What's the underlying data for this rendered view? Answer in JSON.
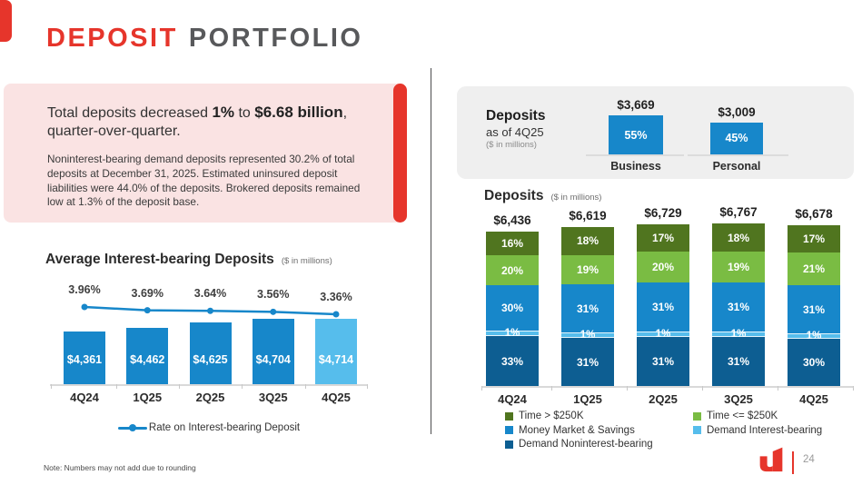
{
  "header": {
    "title_accent": "DEPOSIT",
    "title_rest": "PORTFOLIO"
  },
  "callout": {
    "line1_t1": "Total deposits decreased ",
    "line1_b1": "1%",
    "line1_t2": " to ",
    "line1_b2": "$6.68 billion",
    "line1_t3": ",",
    "line2": "quarter-over-quarter.",
    "body": "Noninterest-bearing demand deposits represented 30.2% of total deposits at December 31, 2025. Estimated uninsured deposit liabilities were 44.0% of the deposits. Brokered deposits remained low at 1.3% of the deposit base."
  },
  "footer": {
    "note": "Note: Numbers may not add due to rounding",
    "page_number": "24"
  },
  "colors": {
    "red": "#e6352b",
    "pink": "#fae3e3",
    "blue": "#1787ca",
    "light_blue": "#56bdec",
    "dark_blue": "#0d5e92",
    "dark_green": "#50751f",
    "light_green": "#7abc43",
    "panel_gray": "#efefef",
    "title_gray": "#58595b"
  },
  "chart_data": [
    {
      "id": "avg-interest-bearing-deposits",
      "type": "bar",
      "title": "Average Interest-bearing Deposits",
      "unit_label": "($ in millions)",
      "categories": [
        "4Q24",
        "1Q25",
        "2Q25",
        "3Q25",
        "4Q25"
      ],
      "series": [
        {
          "name": "Average Interest-bearing Deposits",
          "type": "bar",
          "values": [
            4361,
            4462,
            4625,
            4704,
            4714
          ],
          "labels": [
            "$4,361",
            "$4,462",
            "$4,625",
            "$4,704",
            "$4,714"
          ],
          "colors": [
            "#1787ca",
            "#1787ca",
            "#1787ca",
            "#1787ca",
            "#56bdec"
          ]
        },
        {
          "name": "Rate on Interest-bearing Deposit",
          "type": "line",
          "values": [
            3.96,
            3.69,
            3.64,
            3.56,
            3.36
          ],
          "labels": [
            "3.96%",
            "3.69%",
            "3.64%",
            "3.56%",
            "3.36%"
          ],
          "color": "#1787ca"
        }
      ],
      "legend_position": "bottom"
    },
    {
      "id": "deposits-as-of-4q25",
      "type": "bar",
      "title": "Deposits",
      "subtitle": "as of 4Q25",
      "unit_label": "($ in millions)",
      "categories": [
        "Business",
        "Personal"
      ],
      "values": [
        3669,
        3009
      ],
      "value_labels": [
        "$3,669",
        "$3,009"
      ],
      "pct_labels": [
        "55%",
        "45%"
      ],
      "bar_color": "#1787ca"
    },
    {
      "id": "deposit-mix",
      "type": "stacked-bar",
      "title": "Deposits",
      "unit_label": "($ in millions)",
      "categories": [
        "4Q24",
        "1Q25",
        "2Q25",
        "3Q25",
        "4Q25"
      ],
      "totals": [
        6436,
        6619,
        6729,
        6767,
        6678
      ],
      "total_labels": [
        "$6,436",
        "$6,619",
        "$6,729",
        "$6,767",
        "$6,678"
      ],
      "series": [
        {
          "name": "Demand Noninterest-bearing",
          "color": "#0d5e92",
          "values": [
            33,
            31,
            31,
            31,
            30
          ],
          "labels": [
            "33%",
            "31%",
            "31%",
            "31%",
            "30%"
          ]
        },
        {
          "name": "Demand Interest-bearing",
          "color": "#56bdec",
          "values": [
            1,
            1,
            1,
            1,
            1
          ],
          "labels": [
            "1%",
            "1%",
            "1%",
            "1%",
            "1%"
          ]
        },
        {
          "name": "Money Market & Savings",
          "color": "#1787ca",
          "values": [
            30,
            31,
            31,
            31,
            31
          ],
          "labels": [
            "30%",
            "31%",
            "31%",
            "31%",
            "31%"
          ]
        },
        {
          "name": "Time <= $250K",
          "color": "#7abc43",
          "values": [
            20,
            19,
            20,
            19,
            21
          ],
          "labels": [
            "20%",
            "19%",
            "20%",
            "19%",
            "21%"
          ]
        },
        {
          "name": "Time > $250K",
          "color": "#50751f",
          "values": [
            16,
            18,
            17,
            18,
            17
          ],
          "labels": [
            "16%",
            "18%",
            "17%",
            "18%",
            "17%"
          ]
        }
      ],
      "legend_order": [
        "Time > $250K",
        "Time <= $250K",
        "Money Market & Savings",
        "Demand Interest-bearing",
        "Demand Noninterest-bearing"
      ]
    }
  ]
}
